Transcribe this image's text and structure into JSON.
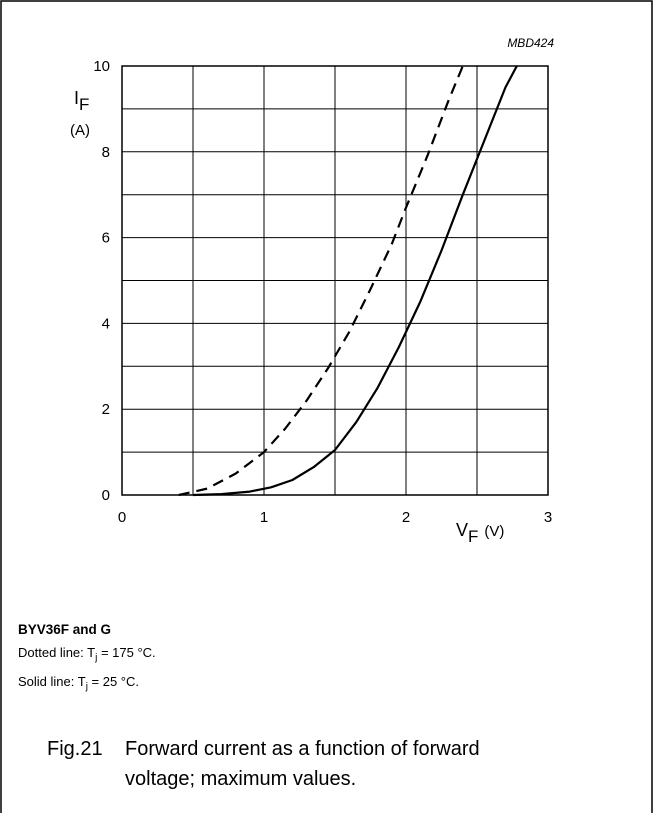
{
  "chart_data": {
    "type": "line",
    "code": "MBD424",
    "ylabel_main": "I",
    "ylabel_sub": "F",
    "ylabel_unit": "(A)",
    "xlabel_main": "V",
    "xlabel_sub": "F",
    "xlabel_unit": "(V)",
    "xlim": [
      0,
      3
    ],
    "ylim": [
      0,
      10
    ],
    "xticks": [
      "0",
      "1",
      "2",
      "3"
    ],
    "yticks": [
      "0",
      "2",
      "4",
      "6",
      "8",
      "10"
    ],
    "grid": true,
    "series": [
      {
        "style": "dashed",
        "x": [
          0.4,
          0.6,
          0.8,
          1.0,
          1.15,
          1.3,
          1.45,
          1.6,
          1.75,
          1.9,
          2.0,
          2.15,
          2.3,
          2.4
        ],
        "y": [
          0.0,
          0.15,
          0.5,
          1.0,
          1.55,
          2.2,
          2.95,
          3.8,
          4.8,
          5.85,
          6.7,
          7.9,
          9.2,
          10.0
        ]
      },
      {
        "style": "solid",
        "x": [
          0.5,
          0.7,
          0.9,
          1.05,
          1.2,
          1.35,
          1.5,
          1.65,
          1.8,
          1.95,
          2.1,
          2.25,
          2.4,
          2.55,
          2.7,
          2.78
        ],
        "y": [
          0.0,
          0.02,
          0.08,
          0.18,
          0.35,
          0.65,
          1.05,
          1.7,
          2.5,
          3.45,
          4.5,
          5.7,
          7.0,
          8.25,
          9.5,
          10.0
        ]
      }
    ]
  },
  "notes": {
    "part": "BYV36F and G",
    "dotted_prefix": "Dotted line: T",
    "dotted_sub": "j",
    "dotted_suffix": " = 175 °C.",
    "solid_prefix": "Solid line: T",
    "solid_sub": "j",
    "solid_suffix": " = 25 °C."
  },
  "figure": {
    "number": "Fig.21",
    "title_line1": "Forward current as a function of forward",
    "title_line2": "voltage; maximum values."
  }
}
